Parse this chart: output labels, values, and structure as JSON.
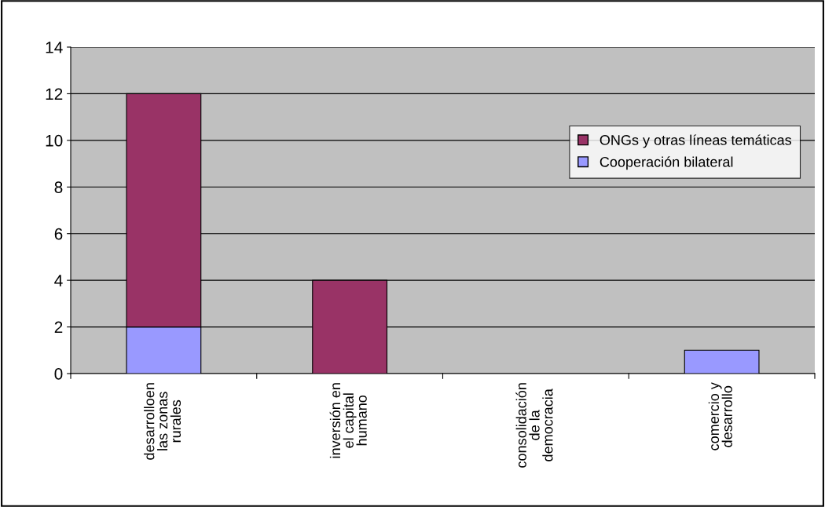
{
  "chart_data": {
    "type": "bar",
    "stacked": true,
    "categories": [
      "desarrolloen\nlas zonas\nrurales",
      "inversión en\nel capital\nhumano",
      "consolidación\nde la\ndemocracia",
      "comercio y\ndesarrollo"
    ],
    "series": [
      {
        "name": "Cooperación bilateral",
        "color": "#9999ff",
        "values": [
          2,
          0,
          0,
          1
        ]
      },
      {
        "name": "ONGs y otras líneas temáticas",
        "color": "#993366",
        "values": [
          10,
          4,
          0,
          0
        ]
      }
    ],
    "ylim": [
      0,
      14
    ],
    "yticks": [
      0,
      2,
      4,
      6,
      8,
      10,
      12,
      14
    ],
    "grid": "y",
    "legend": "top right"
  }
}
